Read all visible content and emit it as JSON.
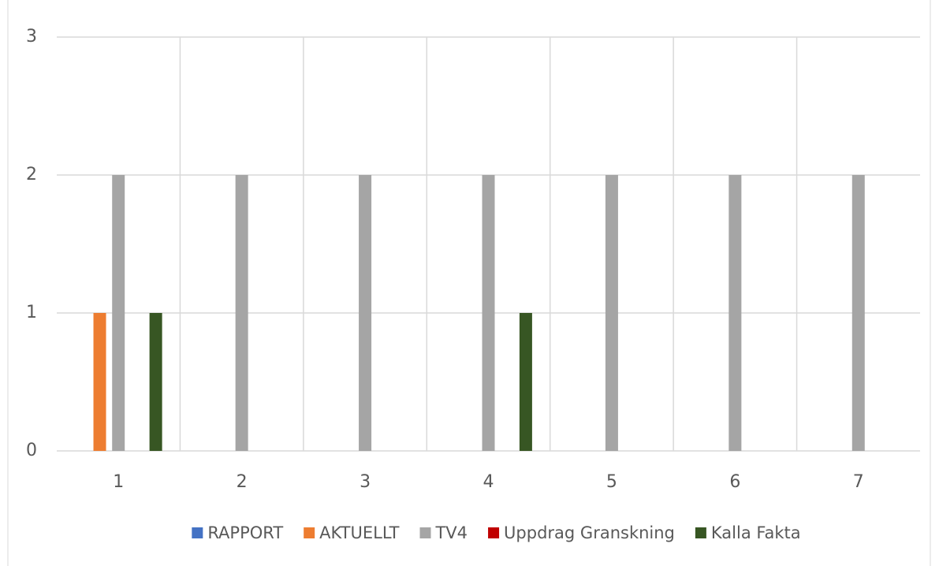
{
  "chart_data": {
    "type": "bar",
    "categories": [
      "1",
      "2",
      "3",
      "4",
      "5",
      "6",
      "7"
    ],
    "series": [
      {
        "name": "RAPPORT",
        "color": "#4472c4",
        "values": [
          0,
          0,
          0,
          0,
          0,
          0,
          0
        ]
      },
      {
        "name": "AKTUELLT",
        "color": "#ed7d31",
        "values": [
          1,
          0,
          0,
          0,
          0,
          0,
          0
        ]
      },
      {
        "name": "TV4",
        "color": "#a5a5a5",
        "values": [
          2,
          2,
          2,
          2,
          2,
          2,
          2
        ]
      },
      {
        "name": "Uppdrag Granskning",
        "color": "#c00000",
        "values": [
          0,
          0,
          0,
          0,
          0,
          0,
          0
        ]
      },
      {
        "name": "Kalla Fakta",
        "color": "#375623",
        "values": [
          1,
          0,
          0,
          1,
          0,
          0,
          0
        ]
      }
    ],
    "ylim": [
      0,
      3
    ],
    "yticks": [
      0,
      1,
      2,
      3
    ],
    "grid": true,
    "legend": "bottom"
  }
}
